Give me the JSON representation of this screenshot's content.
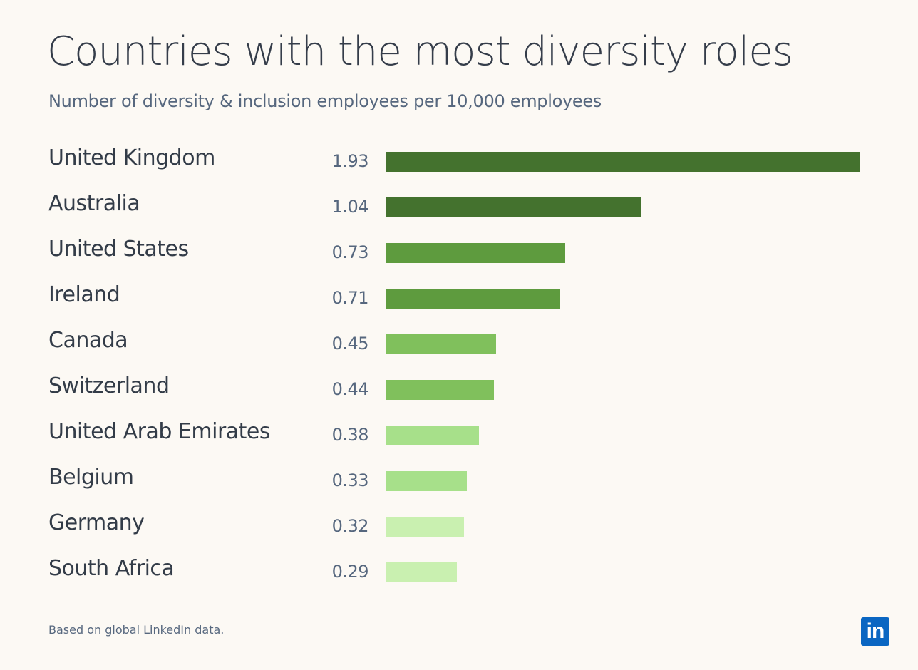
{
  "chart_data": {
    "type": "bar",
    "orientation": "horizontal",
    "title": "Countries with the most diversity roles",
    "subtitle": "Number of diversity & inclusion employees per 10,000 employees",
    "categories": [
      "United Kingdom",
      "Australia",
      "United States",
      "Ireland",
      "Canada",
      "Switzerland",
      "United Arab Emirates",
      "Belgium",
      "Germany",
      "South Africa"
    ],
    "values": [
      1.93,
      1.04,
      0.73,
      0.71,
      0.45,
      0.44,
      0.38,
      0.33,
      0.32,
      0.29
    ],
    "value_labels": [
      "1.93",
      "1.04",
      "0.73",
      "0.71",
      "0.45",
      "0.44",
      "0.38",
      "0.33",
      "0.32",
      "0.29"
    ],
    "colors": [
      "#44722e",
      "#44722e",
      "#5e9b3e",
      "#5e9b3e",
      "#80c05c",
      "#80c05c",
      "#a7e08a",
      "#a7e08a",
      "#c9f0b0",
      "#c9f0b0"
    ],
    "xlim": [
      0,
      1.93
    ],
    "grid": false
  },
  "footnote": "Based on global LinkedIn data.",
  "logo": {
    "text": "in",
    "color": "#0a66c2"
  }
}
